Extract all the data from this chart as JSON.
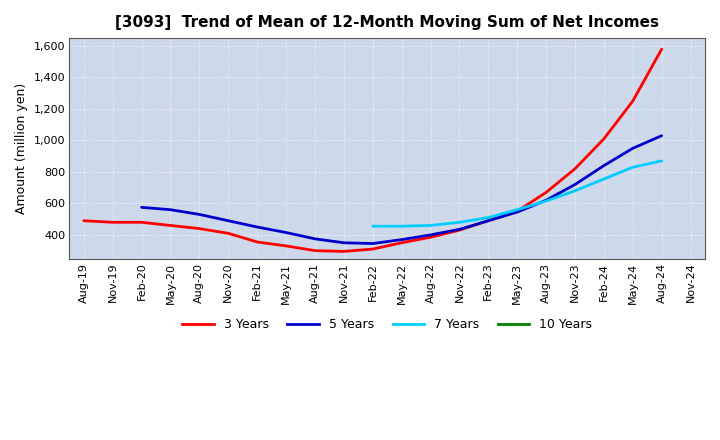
{
  "title": "[3093]  Trend of Mean of 12-Month Moving Sum of Net Incomes",
  "ylabel": "Amount (million yen)",
  "background_color": "#ffffff",
  "plot_background_color": "#cdd9ea",
  "grid_color": "#ffffff",
  "title_fontsize": 11,
  "label_fontsize": 9,
  "tick_fontsize": 8,
  "ylim": [
    250,
    1650
  ],
  "yticks": [
    400,
    600,
    800,
    1000,
    1200,
    1400,
    1600
  ],
  "ytick_labels": [
    "400",
    "600",
    "800",
    "1,000",
    "1,200",
    "1,400",
    "1,600"
  ],
  "x_labels": [
    "Aug-19",
    "Nov-19",
    "Feb-20",
    "May-20",
    "Aug-20",
    "Nov-20",
    "Feb-21",
    "May-21",
    "Aug-21",
    "Nov-21",
    "Feb-22",
    "May-22",
    "Aug-22",
    "Nov-22",
    "Feb-23",
    "May-23",
    "Aug-23",
    "Nov-23",
    "Feb-24",
    "May-24",
    "Aug-24",
    "Nov-24"
  ],
  "series": {
    "3 Years": {
      "color": "#ff0000",
      "data_y": [
        490,
        480,
        480,
        460,
        440,
        410,
        355,
        330,
        300,
        295,
        310,
        350,
        385,
        430,
        490,
        550,
        670,
        820,
        1010,
        1250,
        1580,
        null
      ]
    },
    "5 Years": {
      "color": "#0000cc",
      "data_y": [
        null,
        null,
        575,
        560,
        530,
        490,
        450,
        415,
        375,
        350,
        345,
        370,
        400,
        435,
        490,
        545,
        620,
        720,
        840,
        950,
        1030,
        null
      ]
    },
    "7 Years": {
      "color": "#00ccff",
      "data_y": [
        null,
        null,
        null,
        null,
        null,
        null,
        null,
        null,
        null,
        null,
        455,
        455,
        460,
        480,
        510,
        560,
        615,
        680,
        755,
        830,
        870,
        null
      ]
    },
    "10 Years": {
      "color": "#008000",
      "data_y": [
        null,
        null,
        null,
        null,
        null,
        null,
        null,
        null,
        null,
        null,
        null,
        null,
        null,
        null,
        null,
        null,
        null,
        null,
        null,
        null,
        null,
        null
      ]
    }
  },
  "legend_entries": [
    "3 Years",
    "5 Years",
    "7 Years",
    "10 Years"
  ],
  "legend_colors": [
    "#ff0000",
    "#0000cc",
    "#00ccff",
    "#008000"
  ]
}
